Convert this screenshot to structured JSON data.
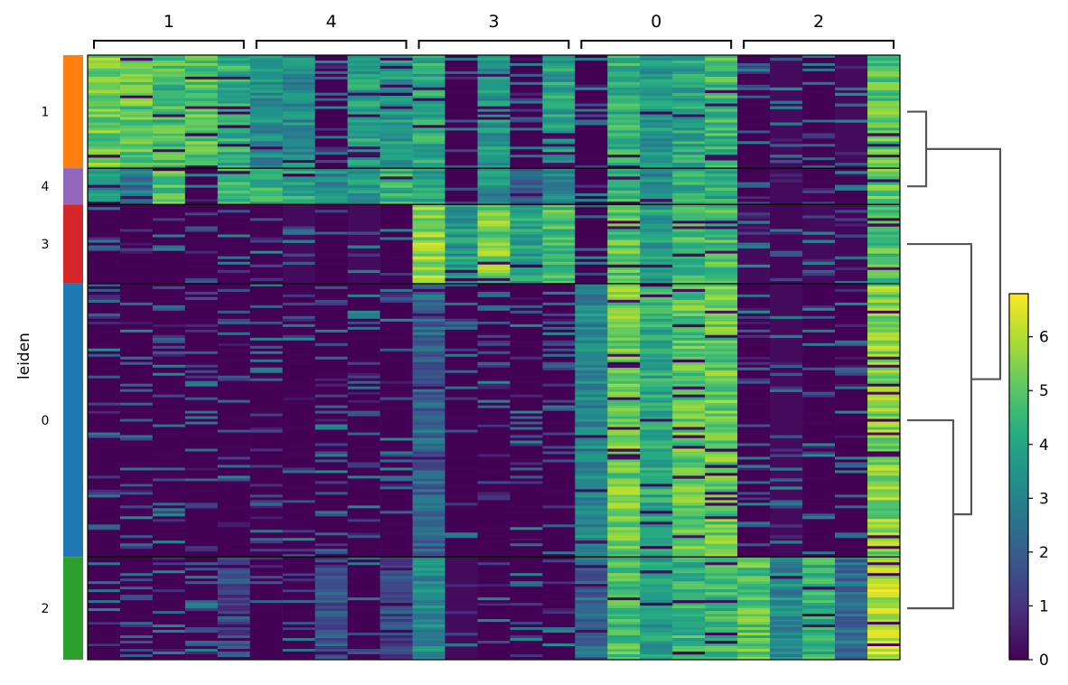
{
  "chart_data": {
    "type": "heatmap",
    "row_axis_label": "leiden",
    "row_groups": [
      {
        "label": "1",
        "color": "#ff7f0e",
        "cell_fraction": 0.187
      },
      {
        "label": "4",
        "color": "#9467bd",
        "cell_fraction": 0.06
      },
      {
        "label": "3",
        "color": "#d62728",
        "cell_fraction": 0.131
      },
      {
        "label": "0",
        "color": "#1f77b4",
        "cell_fraction": 0.452
      },
      {
        "label": "2",
        "color": "#2ca02c",
        "cell_fraction": 0.17
      }
    ],
    "column_groups": [
      {
        "label": "1",
        "n_genes": 5
      },
      {
        "label": "4",
        "n_genes": 5
      },
      {
        "label": "3",
        "n_genes": 5
      },
      {
        "label": "0",
        "n_genes": 5
      },
      {
        "label": "2",
        "n_genes": 5
      }
    ],
    "mean_expression": [
      [
        5.2,
        5.0,
        4.6,
        4.9,
        4.3,
        3.4,
        3.2,
        0.9,
        3.9,
        3.7,
        4.1,
        0.3,
        3.6,
        0.4,
        3.9,
        1.1,
        4.4,
        3.6,
        4.0,
        4.5,
        0.9,
        0.2,
        0.6,
        0.2,
        5.0
      ],
      [
        3.3,
        2.6,
        4.8,
        0.7,
        4.3,
        4.5,
        4.1,
        3.2,
        3.8,
        4.3,
        3.8,
        0.3,
        3.4,
        1.9,
        3.2,
        0.6,
        4.4,
        3.2,
        4.1,
        4.2,
        0.8,
        0.2,
        0.6,
        0.3,
        5.1
      ],
      [
        0.4,
        0.5,
        0.3,
        0.4,
        0.3,
        0.3,
        0.2,
        0.3,
        0.2,
        1.2,
        5.6,
        3.6,
        5.3,
        3.9,
        4.7,
        0.8,
        4.9,
        3.8,
        4.6,
        4.7,
        0.2,
        0.1,
        0.2,
        0.1,
        4.8
      ],
      [
        0.8,
        0.5,
        0.6,
        0.4,
        0.5,
        0.6,
        0.4,
        0.4,
        0.6,
        1.3,
        2.1,
        0.6,
        1.0,
        0.4,
        0.5,
        3.1,
        5.2,
        4.1,
        5.0,
        5.1,
        0.6,
        0.2,
        0.9,
        0.5,
        5.5
      ],
      [
        1.0,
        0.9,
        1.2,
        0.3,
        1.5,
        0.3,
        1.4,
        1.6,
        0.7,
        1.5,
        3.3,
        0.2,
        0.9,
        0.6,
        1.0,
        2.3,
        4.7,
        3.7,
        4.5,
        4.4,
        4.9,
        3.2,
        4.3,
        2.4,
        6.1
      ]
    ],
    "dendrogram": "((1,4),(3,(0,2)))",
    "colorbar": {
      "min": 0,
      "max": 6.8,
      "ticks": [
        "0",
        "1",
        "2",
        "3",
        "4",
        "5",
        "6"
      ],
      "colormap": "viridis"
    }
  }
}
